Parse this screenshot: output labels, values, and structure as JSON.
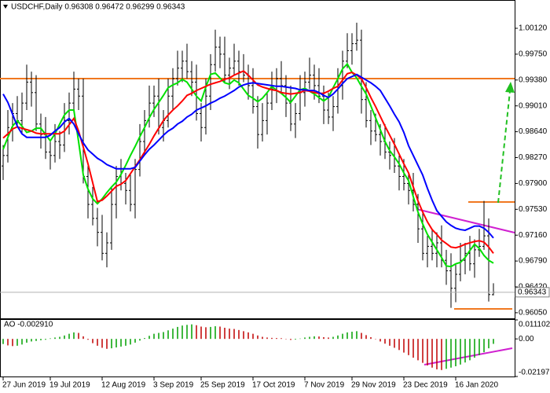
{
  "chart_data": [
    {
      "type": "ohlc",
      "title": "USDCHF,Daily  0.96308 0.96472 0.96299 0.96343",
      "categories": [
        "27 Jun 2019",
        null,
        null,
        null,
        null,
        null,
        null,
        null,
        null,
        null,
        "19 Jul 2019",
        null,
        null,
        null,
        null,
        null,
        null,
        null,
        null,
        null,
        null,
        "12 Aug 2019",
        null,
        null,
        null,
        null,
        null,
        null,
        null,
        null,
        null,
        null,
        "3 Sep 2019",
        null,
        null,
        null,
        null,
        null,
        null,
        null,
        null,
        null,
        "25 Sep 2019",
        null,
        null,
        null,
        null,
        null,
        null,
        null,
        null,
        null,
        null,
        "17 Oct 2019",
        null,
        null,
        null,
        null,
        null,
        null,
        null,
        null,
        null,
        null,
        "7 Nov 2019",
        null,
        null,
        null,
        null,
        null,
        null,
        null,
        null,
        null,
        "29 Nov 2019",
        null,
        null,
        null,
        null,
        null,
        null,
        null,
        null,
        null,
        null,
        "23 Dec 2019",
        null,
        null,
        null,
        null,
        null,
        null,
        null,
        null,
        null,
        null,
        "16 Jan 2020",
        null,
        null,
        null,
        null,
        null,
        null,
        null,
        null
      ],
      "open": [
        0.9815,
        0.983,
        0.987,
        0.989,
        0.988,
        0.9905,
        0.9935,
        0.992,
        0.9875,
        0.986,
        0.9835,
        0.983,
        0.985,
        0.9845,
        0.988,
        0.9905,
        0.9925,
        0.9915,
        0.98,
        0.976,
        0.974,
        0.972,
        0.969,
        0.9705,
        0.976,
        0.98,
        0.979,
        0.978,
        0.976,
        0.981,
        0.985,
        0.988,
        0.9905,
        0.9915,
        0.987,
        0.988,
        0.9915,
        0.994,
        0.9955,
        0.9965,
        0.995,
        0.9935,
        0.989,
        0.987,
        0.9915,
        0.996,
        0.9985,
        0.9975,
        0.9945,
        0.9955,
        0.9965,
        0.995,
        0.9945,
        0.993,
        0.99,
        0.986,
        0.988,
        0.9905,
        0.9925,
        0.994,
        0.993,
        0.9905,
        0.9875,
        0.989,
        0.992,
        0.9935,
        0.9945,
        0.993,
        0.9915,
        0.9895,
        0.9885,
        0.99,
        0.993,
        0.9965,
        0.998,
        0.999,
        0.9995,
        0.991,
        0.988,
        0.9865,
        0.986,
        0.985,
        0.9835,
        0.983,
        0.9815,
        0.98,
        0.979,
        0.978,
        0.976,
        0.9725,
        0.969,
        0.97,
        0.969,
        0.9705,
        0.968,
        0.9665,
        0.964,
        0.966,
        0.968,
        0.969,
        0.9675,
        0.9695,
        0.97,
        0.9715,
        0.96308
      ],
      "high": [
        0.9845,
        0.9895,
        0.9905,
        0.9915,
        0.992,
        0.996,
        0.995,
        0.9945,
        0.989,
        0.9885,
        0.985,
        0.9875,
        0.9865,
        0.9905,
        0.992,
        0.995,
        0.994,
        0.994,
        0.9815,
        0.9785,
        0.9755,
        0.9745,
        0.972,
        0.9785,
        0.9815,
        0.9825,
        0.9805,
        0.9805,
        0.9825,
        0.9875,
        0.9895,
        0.993,
        0.993,
        0.994,
        0.9895,
        0.994,
        0.9955,
        0.998,
        0.998,
        0.999,
        0.9965,
        0.996,
        0.9905,
        0.994,
        0.9975,
        1.001,
        1.0,
        1.0,
        0.997,
        0.999,
        0.998,
        0.9975,
        0.996,
        0.9955,
        0.9915,
        0.9905,
        0.992,
        0.995,
        0.9955,
        0.9965,
        0.9945,
        0.993,
        0.9905,
        0.9945,
        0.995,
        0.997,
        0.996,
        0.9955,
        0.993,
        0.992,
        0.9915,
        0.9955,
        0.998,
        1.0005,
        1.0005,
        1.002,
        1.001,
        0.9935,
        0.9895,
        0.989,
        0.9875,
        0.9875,
        0.985,
        0.9855,
        0.983,
        0.9825,
        0.9805,
        0.9805,
        0.9775,
        0.975,
        0.9715,
        0.9725,
        0.972,
        0.973,
        0.9695,
        0.969,
        0.9675,
        0.9705,
        0.9705,
        0.9715,
        0.971,
        0.9725,
        0.9765,
        0.974,
        0.96472
      ],
      "low": [
        0.9795,
        0.982,
        0.985,
        0.987,
        0.986,
        0.9895,
        0.99,
        0.9865,
        0.984,
        0.9825,
        0.981,
        0.982,
        0.9825,
        0.9835,
        0.986,
        0.9895,
        0.9895,
        0.979,
        0.974,
        0.973,
        0.97,
        0.968,
        0.967,
        0.9695,
        0.974,
        0.978,
        0.976,
        0.975,
        0.974,
        0.98,
        0.983,
        0.987,
        0.9885,
        0.986,
        0.985,
        0.987,
        0.9895,
        0.993,
        0.9935,
        0.994,
        0.9915,
        0.988,
        0.985,
        0.986,
        0.9895,
        0.995,
        0.9955,
        0.9935,
        0.9925,
        0.9945,
        0.993,
        0.9935,
        0.991,
        0.989,
        0.984,
        0.985,
        0.986,
        0.9895,
        0.9905,
        0.992,
        0.9885,
        0.9865,
        0.9855,
        0.988,
        0.99,
        0.9925,
        0.991,
        0.9905,
        0.9875,
        0.9875,
        0.9865,
        0.989,
        0.991,
        0.9955,
        0.996,
        0.998,
        0.989,
        0.987,
        0.9845,
        0.985,
        0.983,
        0.9825,
        0.981,
        0.9805,
        0.978,
        0.978,
        0.976,
        0.975,
        0.9705,
        0.968,
        0.967,
        0.968,
        0.967,
        0.967,
        0.9645,
        0.9612,
        0.962,
        0.965,
        0.966,
        0.9665,
        0.9655,
        0.9685,
        0.9695,
        0.9621,
        0.96299
      ],
      "close": [
        0.983,
        0.987,
        0.989,
        0.988,
        0.9905,
        0.9935,
        0.992,
        0.9875,
        0.986,
        0.9835,
        0.983,
        0.985,
        0.9845,
        0.988,
        0.9905,
        0.9925,
        0.9915,
        0.98,
        0.976,
        0.974,
        0.972,
        0.969,
        0.9705,
        0.976,
        0.98,
        0.979,
        0.978,
        0.976,
        0.981,
        0.985,
        0.988,
        0.9905,
        0.9915,
        0.987,
        0.988,
        0.9915,
        0.994,
        0.9955,
        0.9965,
        0.995,
        0.9935,
        0.989,
        0.987,
        0.9915,
        0.996,
        0.9985,
        0.9975,
        0.9945,
        0.9955,
        0.9965,
        0.995,
        0.9945,
        0.993,
        0.99,
        0.986,
        0.988,
        0.9905,
        0.9925,
        0.994,
        0.993,
        0.9905,
        0.9875,
        0.989,
        0.992,
        0.9935,
        0.9945,
        0.993,
        0.9915,
        0.9895,
        0.9885,
        0.99,
        0.993,
        0.9965,
        0.998,
        0.999,
        0.9995,
        0.991,
        0.988,
        0.9865,
        0.986,
        0.985,
        0.9835,
        0.983,
        0.9815,
        0.98,
        0.979,
        0.978,
        0.976,
        0.9725,
        0.969,
        0.97,
        0.969,
        0.9705,
        0.968,
        0.9665,
        0.964,
        0.966,
        0.968,
        0.969,
        0.9675,
        0.9695,
        0.97,
        0.9715,
        0.9631,
        0.96343
      ],
      "color": "#000000",
      "series": [
        {
          "color": "#00e000",
          "values": [
            0.9839,
            0.9856,
            0.9872,
            0.988,
            0.9872,
            0.9863,
            0.9865,
            0.9869,
            0.9869,
            0.986,
            0.9851,
            0.9861,
            0.9875,
            0.9888,
            0.9895,
            0.9895,
            0.985,
            0.9802,
            0.9782,
            0.9768,
            0.9761,
            0.9768,
            0.9777,
            0.9785,
            0.9792,
            0.9803,
            0.9816,
            0.983,
            0.9843,
            0.9857,
            0.987,
            0.9884,
            0.9896,
            0.9906,
            0.9916,
            0.9927,
            0.9931,
            0.9934,
            0.9939,
            0.9935,
            0.9925,
            0.9915,
            0.9908,
            0.9928,
            0.9946,
            0.9948,
            0.9941,
            0.9934,
            0.9932,
            0.9938,
            0.9934,
            0.9925,
            0.9916,
            0.9912,
            0.9907,
            0.9912,
            0.992,
            0.9929,
            0.9923,
            0.9919,
            0.9913,
            0.9906,
            0.9915,
            0.9924,
            0.9926,
            0.9922,
            0.9918,
            0.9913,
            0.9908,
            0.9913,
            0.9927,
            0.994,
            0.9954,
            0.9961,
            0.9949,
            0.9941,
            0.9929,
            0.9918,
            0.9901,
            0.9884,
            0.9867,
            0.985,
            0.9837,
            0.9828,
            0.9818,
            0.9805,
            0.9794,
            0.9771,
            0.9749,
            0.9732,
            0.9717,
            0.9706,
            0.9695,
            0.9684,
            0.9672,
            0.9671,
            0.9675,
            0.9677,
            0.9684,
            0.9694,
            0.9703,
            0.9697,
            0.9687,
            0.968,
            0.9676
          ]
        },
        {
          "color": "#ff0000",
          "values": [
            0.9855,
            0.9861,
            0.9868,
            0.9871,
            0.9869,
            0.9867,
            0.9865,
            0.9862,
            0.9861,
            0.9861,
            0.9861,
            0.9861,
            0.9861,
            0.9865,
            0.9874,
            0.9883,
            0.9865,
            0.9842,
            0.9818,
            0.9791,
            0.9764,
            0.9766,
            0.9772,
            0.9779,
            0.9786,
            0.9789,
            0.9794,
            0.9804,
            0.9814,
            0.9824,
            0.9835,
            0.9846,
            0.9858,
            0.9869,
            0.988,
            0.9888,
            0.9895,
            0.9901,
            0.9908,
            0.9916,
            0.9919,
            0.9923,
            0.9926,
            0.9929,
            0.9932,
            0.9934,
            0.9936,
            0.9939,
            0.9941,
            0.9945,
            0.9948,
            0.9951,
            0.9945,
            0.9938,
            0.9931,
            0.9928,
            0.9926,
            0.9924,
            0.9923,
            0.992,
            0.9919,
            0.9918,
            0.9919,
            0.992,
            0.9923,
            0.9922,
            0.992,
            0.9919,
            0.9919,
            0.9922,
            0.9926,
            0.9929,
            0.9938,
            0.9947,
            0.9949,
            0.9945,
            0.994,
            0.9927,
            0.9913,
            0.99,
            0.9886,
            0.9872,
            0.9859,
            0.9846,
            0.9832,
            0.9818,
            0.9805,
            0.9785,
            0.9765,
            0.9749,
            0.9735,
            0.9724,
            0.9717,
            0.9709,
            0.9704,
            0.9699,
            0.9698,
            0.97,
            0.9703,
            0.9705,
            0.9707,
            0.9708,
            0.9706,
            0.9699,
            0.969
          ]
        },
        {
          "color": "#0000ff",
          "values": [
            0.9918,
            0.9906,
            0.9889,
            0.9872,
            0.9861,
            0.9856,
            0.9856,
            0.9856,
            0.9856,
            0.9856,
            0.9859,
            0.9865,
            0.987,
            0.9878,
            0.9883,
            0.9875,
            0.9861,
            0.9848,
            0.9838,
            0.9832,
            0.9826,
            0.9822,
            0.9817,
            0.9814,
            0.9811,
            0.9811,
            0.9811,
            0.9811,
            0.9813,
            0.9822,
            0.9831,
            0.9839,
            0.9845,
            0.9852,
            0.9859,
            0.9865,
            0.9869,
            0.9875,
            0.9879,
            0.9885,
            0.9889,
            0.9895,
            0.9898,
            0.9901,
            0.9905,
            0.9908,
            0.9912,
            0.9915,
            0.9919,
            0.9923,
            0.9928,
            0.9931,
            0.9933,
            0.9934,
            0.9933,
            0.9932,
            0.9931,
            0.993,
            0.9929,
            0.9929,
            0.9928,
            0.9927,
            0.9926,
            0.9924,
            0.9924,
            0.9923,
            0.9923,
            0.992,
            0.9916,
            0.9913,
            0.9918,
            0.9925,
            0.9933,
            0.994,
            0.9943,
            0.9946,
            0.9942,
            0.9938,
            0.9934,
            0.9929,
            0.9923,
            0.9912,
            0.9901,
            0.9889,
            0.9878,
            0.9863,
            0.9844,
            0.983,
            0.9816,
            0.9802,
            0.9783,
            0.9766,
            0.9751,
            0.9743,
            0.9735,
            0.973,
            0.9726,
            0.9724,
            0.9723,
            0.9726,
            0.9729,
            0.9729,
            0.9726,
            0.972,
            0.9712
          ]
        }
      ],
      "ylim": [
        0.9597,
        1.00525
      ],
      "yticks": [
        {
          "value": 1.0012,
          "label": "1.00120"
        },
        {
          "value": 0.9975,
          "label": "0.99750"
        },
        {
          "value": 0.9938,
          "label": "0.99380"
        },
        {
          "value": 0.9901,
          "label": "0.99010"
        },
        {
          "value": 0.9864,
          "label": "0.98640"
        },
        {
          "value": 0.9827,
          "label": "0.98270"
        },
        {
          "value": 0.979,
          "label": "0.97900"
        },
        {
          "value": 0.9753,
          "label": "0.97530"
        },
        {
          "value": 0.9716,
          "label": "0.97160"
        },
        {
          "value": 0.9679,
          "label": "0.96790"
        },
        {
          "value": 0.9642,
          "label": "0.96420"
        },
        {
          "value": 0.9605,
          "label": "0.96050"
        }
      ],
      "last_price": 0.96343
    },
    {
      "type": "bar",
      "label": "AO -0.002910",
      "values": [
        -0.003,
        -0.0038,
        -0.0042,
        -0.004,
        -0.0033,
        -0.0022,
        -0.0015,
        -0.0012,
        -0.0008,
        -0.0005,
        0.0003,
        0.0008,
        0.0012,
        0.002,
        0.003,
        0.0038,
        0.0035,
        0.0015,
        -0.0005,
        -0.0025,
        -0.004,
        -0.0052,
        -0.0058,
        -0.0055,
        -0.005,
        -0.0045,
        -0.004,
        -0.0033,
        -0.0022,
        -0.001,
        0.0005,
        0.0018,
        0.003,
        0.0035,
        0.004,
        0.005,
        0.006,
        0.007,
        0.0078,
        0.0082,
        0.0085,
        0.008,
        0.0072,
        0.0068,
        0.007,
        0.0074,
        0.0072,
        0.0065,
        0.006,
        0.0058,
        0.0052,
        0.0045,
        0.0038,
        0.003,
        0.002,
        0.0012,
        0.0008,
        0.0006,
        0.0005,
        0.0004,
        -0.0002,
        -0.0006,
        -0.0004,
        0.0002,
        0.0008,
        0.0012,
        0.0015,
        0.0014,
        0.001,
        0.0008,
        0.0012,
        0.002,
        0.003,
        0.0038,
        0.0042,
        0.0045,
        0.0035,
        0.0022,
        0.001,
        -0.0002,
        -0.0015,
        -0.0028,
        -0.004,
        -0.0052,
        -0.0065,
        -0.008,
        -0.0095,
        -0.011,
        -0.0125,
        -0.014,
        -0.0155,
        -0.0168,
        -0.0178,
        -0.0182,
        -0.0175,
        -0.0168,
        -0.016,
        -0.015,
        -0.0138,
        -0.0125,
        -0.011,
        -0.0095,
        -0.0078,
        -0.0055,
        -0.00291
      ],
      "up_color": "#00a000",
      "down_color": "#c00000",
      "ylim": [
        -0.021979,
        0.011102
      ],
      "yticks": [
        0.011102,
        {
          "value": 0,
          "label": "0.00"
        },
        -0.021979
      ]
    }
  ]
}
